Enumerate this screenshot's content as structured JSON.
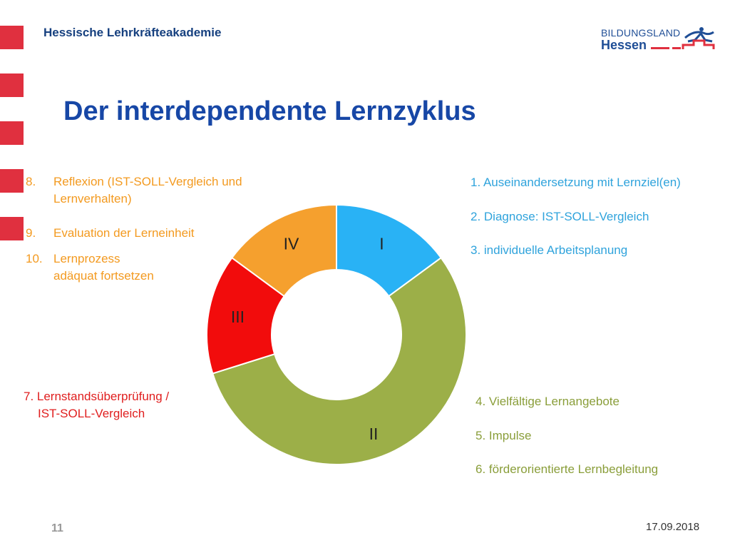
{
  "header": {
    "org": "Hessische Lehrkräfteakademie",
    "logo_top": "BILDUNGSLAND",
    "logo_bottom": "Hessen"
  },
  "title": "Der interdependente Lernzyklus",
  "left_list": [
    {
      "num": "8.",
      "line1": "Reflexion (IST-SOLL-Vergleich und",
      "line2": "Lernverhalten)"
    },
    {
      "num": "9.",
      "line1": "Evaluation der Lerneinheit",
      "line2": ""
    },
    {
      "num": "10.",
      "line1": "Lernprozess",
      "line2": "adäquat fortsetzen"
    }
  ],
  "red_text": {
    "line1": "7. Lernstandsüberprüfung /",
    "line2": "IST-SOLL-Vergleich"
  },
  "right_top": [
    "1. Auseinandersetzung mit Lernziel(en)",
    "2. Diagnose: IST-SOLL-Vergleich",
    "3. individuelle Arbeitsplanung"
  ],
  "right_bottom": [
    "4. Vielfältige Lernangebote",
    "5. Impulse",
    "6. förderorientierte Lernbegleitung"
  ],
  "chart_data": {
    "type": "pie",
    "donut": true,
    "slices": [
      {
        "label": "I",
        "value": 13.5,
        "color": "#29b2f5"
      },
      {
        "label": "II",
        "value": 50,
        "color": "#9caf48"
      },
      {
        "label": "III",
        "value": 13.5,
        "color": "#f20c0c"
      },
      {
        "label": "IV",
        "value": 13.5,
        "color": "#f5a02e"
      }
    ]
  },
  "footer": {
    "page": "11",
    "date": "17.09.2018"
  }
}
